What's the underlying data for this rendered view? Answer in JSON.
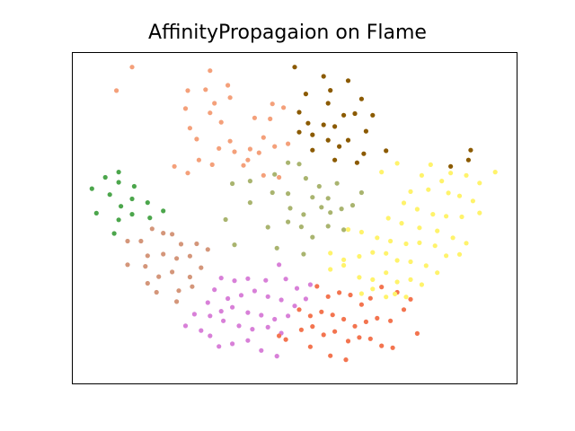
{
  "chart_data": {
    "type": "scatter",
    "title": "AffinityPropagaion on Flame",
    "xlabel": "",
    "ylabel": "",
    "xlim": [
      0,
      100
    ],
    "ylim": [
      0,
      100
    ],
    "grid": false,
    "axis_ticks": false,
    "series": [
      {
        "color": "#8b5a00",
        "points": [
          [
            50,
            95.5
          ],
          [
            56.5,
            92.7
          ],
          [
            62,
            91.4
          ],
          [
            52.5,
            87.4
          ],
          [
            58,
            88.5
          ],
          [
            65,
            85.9
          ],
          [
            67.5,
            81
          ],
          [
            63.5,
            81.5
          ],
          [
            57.5,
            84.6
          ],
          [
            51,
            81.9
          ],
          [
            53,
            78.6
          ],
          [
            56.5,
            78.1
          ],
          [
            59,
            77.6
          ],
          [
            61,
            81
          ],
          [
            51,
            75.9
          ],
          [
            54,
            75.1
          ],
          [
            57.5,
            73.5
          ],
          [
            60,
            71.6
          ],
          [
            62,
            73.5
          ],
          [
            66,
            76.2
          ],
          [
            65.5,
            69.4
          ],
          [
            54,
            70.5
          ],
          [
            59,
            67.5
          ],
          [
            64,
            66.7
          ],
          [
            70.5,
            70.3
          ],
          [
            89.5,
            70.5
          ],
          [
            85,
            65.6
          ],
          [
            89,
            67.5
          ]
        ]
      },
      {
        "color": "#f4a07a",
        "points": [
          [
            13.5,
            95.5
          ],
          [
            10,
            88.4
          ],
          [
            31,
            94.4
          ],
          [
            26,
            88.4
          ],
          [
            30,
            88.7
          ],
          [
            35,
            90
          ],
          [
            35.5,
            86.3
          ],
          [
            25.5,
            83
          ],
          [
            32,
            84.6
          ],
          [
            26.5,
            77.1
          ],
          [
            31,
            81.7
          ],
          [
            33.5,
            78.9
          ],
          [
            41,
            80.2
          ],
          [
            44.5,
            79.9
          ],
          [
            45,
            84.4
          ],
          [
            47.5,
            83.3
          ],
          [
            43,
            74.3
          ],
          [
            45.5,
            71.6
          ],
          [
            48.5,
            72.4
          ],
          [
            40,
            70.8
          ],
          [
            35.5,
            73.2
          ],
          [
            28,
            73.8
          ],
          [
            33,
            71
          ],
          [
            36.5,
            70
          ],
          [
            39.5,
            67.5
          ],
          [
            42,
            69.7
          ],
          [
            28.5,
            67.5
          ],
          [
            31.5,
            66.1
          ],
          [
            38.5,
            65.9
          ],
          [
            43,
            62.9
          ],
          [
            46.5,
            62.3
          ],
          [
            23,
            65.6
          ],
          [
            26,
            63.6
          ]
        ]
      },
      {
        "color": "#a9b46f",
        "points": [
          [
            36,
            60.4
          ],
          [
            40,
            61.2
          ],
          [
            45.5,
            63.2
          ],
          [
            48.5,
            66.7
          ],
          [
            51,
            66.3
          ],
          [
            52.5,
            62
          ],
          [
            54,
            56.3
          ],
          [
            45,
            57.7
          ],
          [
            48.5,
            57.4
          ],
          [
            55.5,
            59.6
          ],
          [
            57.5,
            56
          ],
          [
            59.5,
            60.5
          ],
          [
            63,
            53.9
          ],
          [
            65,
            57.7
          ],
          [
            49,
            53
          ],
          [
            52,
            51.1
          ],
          [
            56,
            53.3
          ],
          [
            58,
            51.7
          ],
          [
            60.5,
            52.8
          ],
          [
            40,
            54.7
          ],
          [
            44,
            47.3
          ],
          [
            48.5,
            48.9
          ],
          [
            51.5,
            47.4
          ],
          [
            54,
            44.3
          ],
          [
            57.5,
            47.6
          ],
          [
            34.5,
            49.6
          ],
          [
            36.5,
            42
          ],
          [
            46,
            41
          ],
          [
            52,
            39.2
          ],
          [
            61,
            46.5
          ]
        ]
      },
      {
        "color": "#4ca64c",
        "points": [
          [
            7.5,
            62.3
          ],
          [
            10.5,
            63.9
          ],
          [
            4.5,
            58.9
          ],
          [
            8.5,
            57.1
          ],
          [
            10.5,
            60.8
          ],
          [
            14,
            59.6
          ],
          [
            11,
            53.6
          ],
          [
            13.5,
            55.8
          ],
          [
            17,
            54.7
          ],
          [
            5.5,
            51.5
          ],
          [
            10.5,
            49.5
          ],
          [
            13.5,
            51.2
          ],
          [
            17.5,
            50.1
          ],
          [
            20.5,
            52.2
          ],
          [
            9.5,
            45.4
          ]
        ]
      },
      {
        "color": "#d4967a",
        "points": [
          [
            12.5,
            43.1
          ],
          [
            15.5,
            43.1
          ],
          [
            18,
            46.8
          ],
          [
            20.5,
            45.5
          ],
          [
            22.5,
            45.2
          ],
          [
            24.5,
            42.2
          ],
          [
            28,
            42.3
          ],
          [
            30.5,
            40.6
          ],
          [
            17,
            38.7
          ],
          [
            20.5,
            39.2
          ],
          [
            23.5,
            37.9
          ],
          [
            26.5,
            38.6
          ],
          [
            12.5,
            36
          ],
          [
            16.5,
            35.5
          ],
          [
            19.5,
            32.4
          ],
          [
            22.5,
            33.8
          ],
          [
            26.5,
            32.3
          ],
          [
            29,
            35.1
          ],
          [
            17,
            30.4
          ],
          [
            19,
            27.7
          ],
          [
            24,
            28.2
          ],
          [
            27,
            29.4
          ],
          [
            23.5,
            24.9
          ]
        ]
      },
      {
        "color": "#d880d8",
        "points": [
          [
            33.5,
            32
          ],
          [
            36.5,
            31.2
          ],
          [
            39.5,
            31.8
          ],
          [
            43.5,
            31.3
          ],
          [
            46.5,
            36
          ],
          [
            48,
            31.7
          ],
          [
            50.5,
            28.9
          ],
          [
            53.5,
            30
          ],
          [
            32,
            28.5
          ],
          [
            35,
            25.8
          ],
          [
            38,
            26.8
          ],
          [
            41,
            28.1
          ],
          [
            44,
            26.4
          ],
          [
            47,
            25.4
          ],
          [
            50,
            23.6
          ],
          [
            52.5,
            25.7
          ],
          [
            30.5,
            24.6
          ],
          [
            33.5,
            22
          ],
          [
            36,
            23.2
          ],
          [
            39.5,
            21.6
          ],
          [
            42.5,
            20.8
          ],
          [
            45.5,
            19.6
          ],
          [
            48.5,
            20.6
          ],
          [
            31,
            20.6
          ],
          [
            34,
            19.1
          ],
          [
            37.5,
            17.6
          ],
          [
            40.5,
            16.6
          ],
          [
            44,
            17.2
          ],
          [
            47,
            15.4
          ],
          [
            25.5,
            17.6
          ],
          [
            29,
            16.2
          ],
          [
            31,
            14.6
          ],
          [
            33,
            11.4
          ],
          [
            36,
            12.2
          ],
          [
            39.5,
            13.2
          ],
          [
            42.5,
            10.2
          ],
          [
            46,
            8.5
          ],
          [
            27.5,
            21.1
          ]
        ]
      },
      {
        "color": "#f3744f",
        "points": [
          [
            55,
            29.5
          ],
          [
            57.5,
            26.4
          ],
          [
            60,
            27.6
          ],
          [
            62.5,
            26.9
          ],
          [
            65,
            24
          ],
          [
            67,
            25.9
          ],
          [
            69.5,
            29.3
          ],
          [
            73,
            27.7
          ],
          [
            51,
            22.5
          ],
          [
            53.5,
            20.6
          ],
          [
            56,
            21.8
          ],
          [
            58.5,
            20.9
          ],
          [
            61,
            19.6
          ],
          [
            63.5,
            17.5
          ],
          [
            66,
            18.8
          ],
          [
            68.5,
            19.9
          ],
          [
            71.5,
            19.1
          ],
          [
            74.5,
            22.5
          ],
          [
            76,
            25.6
          ],
          [
            51.5,
            16.4
          ],
          [
            54,
            17.4
          ],
          [
            56.5,
            14.9
          ],
          [
            59,
            15.9
          ],
          [
            62,
            13
          ],
          [
            64.5,
            14.1
          ],
          [
            67,
            13.7
          ],
          [
            69.5,
            11.6
          ],
          [
            72,
            11
          ],
          [
            48,
            13.5
          ],
          [
            53.5,
            11.3
          ],
          [
            58,
            8.6
          ],
          [
            61.5,
            7.4
          ],
          [
            46.5,
            14.6
          ],
          [
            77.5,
            15.3
          ]
        ]
      },
      {
        "color": "#fff36b",
        "points": [
          [
            69.5,
            63.9
          ],
          [
            73,
            66.5
          ],
          [
            78.5,
            62.9
          ],
          [
            80.5,
            66.1
          ],
          [
            83,
            61.2
          ],
          [
            85,
            63.6
          ],
          [
            88.5,
            62.9
          ],
          [
            91.5,
            60.6
          ],
          [
            95,
            63.9
          ],
          [
            76,
            58
          ],
          [
            80,
            58.6
          ],
          [
            84.5,
            57.6
          ],
          [
            87,
            56.7
          ],
          [
            90,
            55.2
          ],
          [
            74.5,
            54.6
          ],
          [
            77.5,
            52.7
          ],
          [
            81,
            51.2
          ],
          [
            84,
            50.6
          ],
          [
            87.5,
            50.4
          ],
          [
            91.5,
            51.6
          ],
          [
            71,
            50
          ],
          [
            74,
            48.5
          ],
          [
            78,
            47.1
          ],
          [
            82,
            46.2
          ],
          [
            85.5,
            44.1
          ],
          [
            88.5,
            42.5
          ],
          [
            62,
            46.6
          ],
          [
            65,
            45.8
          ],
          [
            68.5,
            44.1
          ],
          [
            71.5,
            43.1
          ],
          [
            75,
            42.3
          ],
          [
            78,
            42.6
          ],
          [
            81.5,
            41.7
          ],
          [
            84,
            38.7
          ],
          [
            87,
            39.1
          ],
          [
            58,
            39.5
          ],
          [
            61,
            37.5
          ],
          [
            64.5,
            38.5
          ],
          [
            67.5,
            39.7
          ],
          [
            70.5,
            39.4
          ],
          [
            73,
            37.3
          ],
          [
            76,
            36.9
          ],
          [
            79.5,
            35.7
          ],
          [
            82,
            33.6
          ],
          [
            58,
            34.6
          ],
          [
            61,
            35.8
          ],
          [
            64.5,
            32.2
          ],
          [
            67.5,
            31.5
          ],
          [
            70.5,
            33.6
          ],
          [
            73,
            30.8
          ],
          [
            76,
            31.5
          ],
          [
            78.5,
            30
          ],
          [
            65,
            27.3
          ],
          [
            67.5,
            28.7
          ],
          [
            70.5,
            26.3
          ],
          [
            72.5,
            27.2
          ],
          [
            75,
            26.3
          ]
        ]
      }
    ]
  }
}
